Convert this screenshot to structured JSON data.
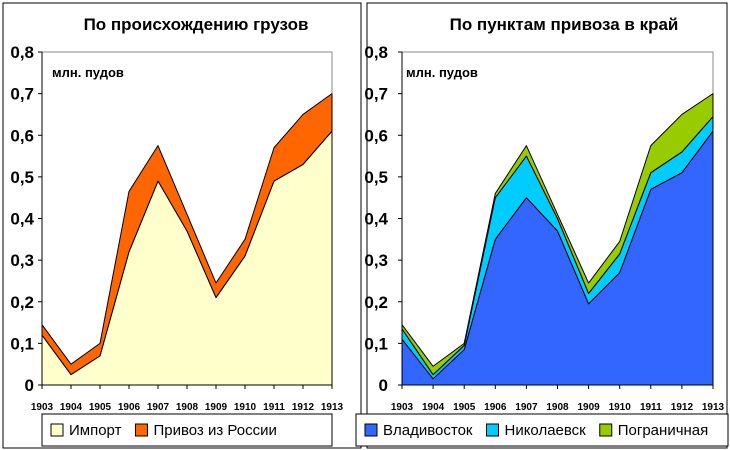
{
  "chart_data": [
    {
      "type": "area",
      "stacked": true,
      "title": "По происхождению грузов",
      "unit_label": "млн. пудов",
      "x": [
        "1903",
        "1904",
        "1905",
        "1906",
        "1907",
        "1908",
        "1909",
        "1910",
        "1911",
        "1912",
        "1913"
      ],
      "ylim": [
        0,
        0.8
      ],
      "yticks": [
        "0",
        "0,1",
        "0,2",
        "0,3",
        "0,4",
        "0,5",
        "0,6",
        "0,7",
        "0,8"
      ],
      "legend_position": "bottom",
      "series": [
        {
          "name": "Импорт",
          "color": "#ffffcc",
          "values": [
            0.12,
            0.025,
            0.07,
            0.32,
            0.49,
            0.37,
            0.21,
            0.31,
            0.49,
            0.53,
            0.61
          ]
        },
        {
          "name": "Привоз из России",
          "color": "#ff6600",
          "values": [
            0.025,
            0.025,
            0.03,
            0.145,
            0.085,
            0.04,
            0.035,
            0.04,
            0.08,
            0.12,
            0.09
          ]
        }
      ]
    },
    {
      "type": "area",
      "stacked": true,
      "title": "По пунктам привоза в край",
      "unit_label": "млн. пудов",
      "x": [
        "1903",
        "1904",
        "1905",
        "1906",
        "1907",
        "1908",
        "1909",
        "1910",
        "1911",
        "1912",
        "1913"
      ],
      "ylim": [
        0,
        0.8
      ],
      "yticks": [
        "0",
        "0,1",
        "0,2",
        "0,3",
        "0,4",
        "0,5",
        "0,6",
        "0,7",
        "0,8"
      ],
      "legend_position": "bottom",
      "series": [
        {
          "name": "Владивосток",
          "color": "#3366ff",
          "values": [
            0.11,
            0.015,
            0.085,
            0.35,
            0.45,
            0.37,
            0.195,
            0.27,
            0.47,
            0.51,
            0.61
          ]
        },
        {
          "name": "Николаевск",
          "color": "#00ccff",
          "values": [
            0.025,
            0.01,
            0.01,
            0.1,
            0.1,
            0.03,
            0.025,
            0.045,
            0.04,
            0.05,
            0.035
          ]
        },
        {
          "name": "Пограничная",
          "color": "#99cc00",
          "values": [
            0.01,
            0.02,
            0.005,
            0.01,
            0.025,
            0.01,
            0.025,
            0.03,
            0.065,
            0.09,
            0.055
          ]
        }
      ]
    }
  ]
}
